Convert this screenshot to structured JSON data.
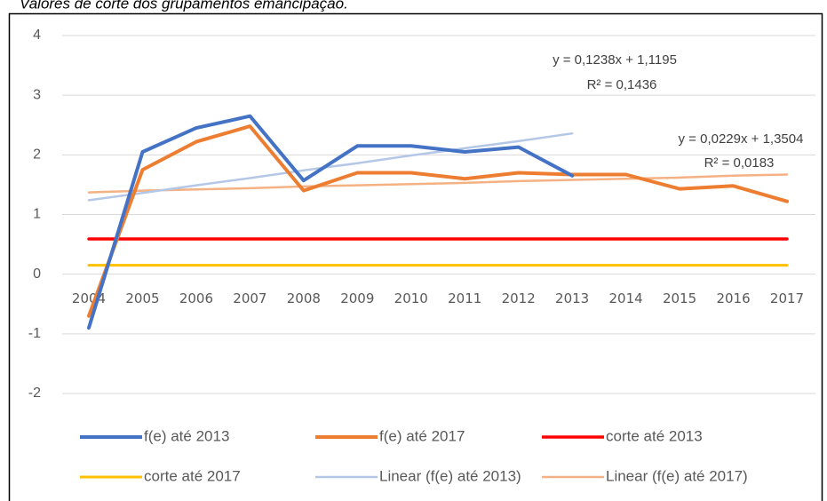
{
  "chart_data": {
    "type": "line",
    "title": "Valores de corte dos grupamentos emancipação.",
    "categories": [
      "2004",
      "2005",
      "2006",
      "2007",
      "2008",
      "2009",
      "2010",
      "2011",
      "2012",
      "2013",
      "2014",
      "2015",
      "2016",
      "2017"
    ],
    "series": [
      {
        "name": "f(e) até 2013",
        "color": "#4472c4",
        "width": 4,
        "values": [
          -0.9,
          2.05,
          2.45,
          2.65,
          1.57,
          2.15,
          2.15,
          2.05,
          2.13,
          1.65,
          null,
          null,
          null,
          null
        ]
      },
      {
        "name": "f(e) até 2017",
        "color": "#ed7d31",
        "width": 4,
        "values": [
          -0.7,
          1.75,
          2.22,
          2.48,
          1.4,
          1.7,
          1.7,
          1.6,
          1.7,
          1.67,
          1.67,
          1.43,
          1.48,
          1.22
        ]
      },
      {
        "name": "corte até 2013",
        "color": "#ff0000",
        "width": 3.5,
        "values": [
          0.59,
          0.59,
          0.59,
          0.59,
          0.59,
          0.59,
          0.59,
          0.59,
          0.59,
          0.59,
          0.59,
          0.59,
          0.59,
          0.59
        ]
      },
      {
        "name": "corte até 2017",
        "color": "#ffc000",
        "width": 3,
        "values": [
          0.15,
          0.15,
          0.15,
          0.15,
          0.15,
          0.15,
          0.15,
          0.15,
          0.15,
          0.15,
          0.15,
          0.15,
          0.15,
          0.15
        ]
      },
      {
        "name": "Linear (f(e) até 2013)",
        "color": "#b4c7e7",
        "width": 2.5,
        "values": [
          1.24,
          1.36,
          1.49,
          1.61,
          1.74,
          1.86,
          1.99,
          2.11,
          2.23,
          2.36,
          null,
          null,
          null,
          null
        ]
      },
      {
        "name": "Linear (f(e) até 2017)",
        "color": "#f4b183",
        "width": 2.5,
        "values": [
          1.37,
          1.4,
          1.42,
          1.44,
          1.47,
          1.49,
          1.51,
          1.53,
          1.56,
          1.58,
          1.6,
          1.62,
          1.65,
          1.67
        ]
      }
    ],
    "annotations": [
      "y = 0,1238x + 1,1195",
      "R² = 0,1436",
      "y = 0,0229x + 1,3504",
      "R² = 0,0183"
    ],
    "ylim": [
      -2,
      4
    ],
    "yticks": [
      -2,
      -1,
      0,
      1,
      2,
      3,
      4
    ],
    "grid": true,
    "legend": "bottom"
  }
}
